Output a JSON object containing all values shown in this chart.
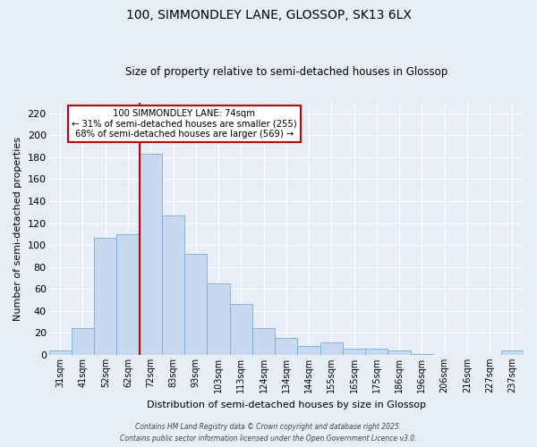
{
  "title": "100, SIMMONDLEY LANE, GLOSSOP, SK13 6LX",
  "subtitle": "Size of property relative to semi-detached houses in Glossop",
  "xlabel": "Distribution of semi-detached houses by size in Glossop",
  "ylabel": "Number of semi-detached properties",
  "categories": [
    "31sqm",
    "41sqm",
    "52sqm",
    "62sqm",
    "72sqm",
    "83sqm",
    "93sqm",
    "103sqm",
    "113sqm",
    "124sqm",
    "134sqm",
    "144sqm",
    "155sqm",
    "165sqm",
    "175sqm",
    "186sqm",
    "196sqm",
    "206sqm",
    "216sqm",
    "227sqm",
    "237sqm"
  ],
  "values": [
    4,
    24,
    107,
    110,
    183,
    127,
    92,
    65,
    46,
    24,
    15,
    8,
    11,
    6,
    6,
    4,
    1,
    0,
    0,
    0,
    4
  ],
  "bar_color": "#c6d9f0",
  "bar_edge_color": "#7aadd4",
  "vline_bar_index": 4,
  "vline_color": "#cc0000",
  "annotation_title": "100 SIMMONDLEY LANE: 74sqm",
  "annotation_line1": "← 31% of semi-detached houses are smaller (255)",
  "annotation_line2": "68% of semi-detached houses are larger (569) →",
  "annotation_box_color": "white",
  "annotation_box_edge": "#cc0000",
  "ylim": [
    0,
    230
  ],
  "yticks": [
    0,
    20,
    40,
    60,
    80,
    100,
    120,
    140,
    160,
    180,
    200,
    220
  ],
  "footer1": "Contains HM Land Registry data © Crown copyright and database right 2025.",
  "footer2": "Contains public sector information licensed under the Open Government Licence v3.0.",
  "bg_color": "#e8eef8",
  "grid_color": "white",
  "title_fontsize": 10,
  "subtitle_fontsize": 8.5
}
